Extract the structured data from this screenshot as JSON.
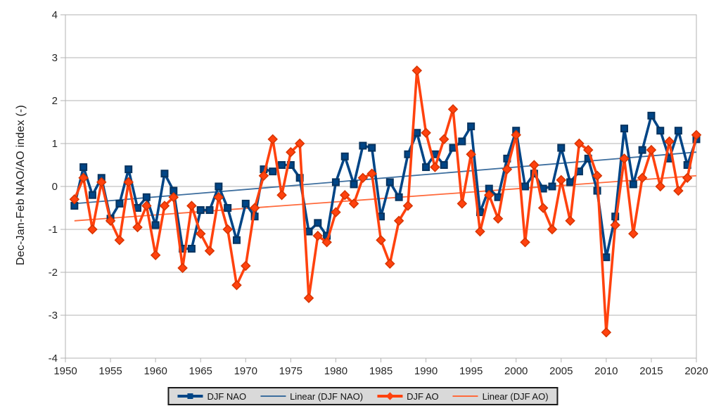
{
  "chart": {
    "y_axis_title": "Dec-Jan-Feb NAO/AO index (-)",
    "colors": {
      "nao": "#004586",
      "nao_marker_stroke": "#06335f",
      "ao": "#ff420e",
      "ao_marker_stroke": "#d63400",
      "nao_trend": "#3d6e9e",
      "ao_trend": "#ff6a3c",
      "gridline": "#b3b3b3",
      "axis_text": "#262626",
      "legend_bg": "#d9d9d9",
      "legend_border": "#1a1a1a"
    }
  },
  "axis": {
    "y_ticks": [
      4,
      3,
      2,
      1,
      0,
      -1,
      -2,
      -3,
      -4
    ],
    "x_ticks": [
      1950,
      1955,
      1960,
      1965,
      1970,
      1975,
      1980,
      1985,
      1990,
      1995,
      2000,
      2005,
      2010,
      2015,
      2020
    ]
  },
  "legend": {
    "items": [
      {
        "label": "DJF NAO"
      },
      {
        "label": "Linear (DJF NAO)"
      },
      {
        "label": "DJF AO"
      },
      {
        "label": "Linear (DJF AO)"
      }
    ]
  },
  "chart_data": {
    "type": "line",
    "title": "",
    "xlabel": "",
    "ylabel": "Dec-Jan-Feb NAO/AO index (-)",
    "xlim": [
      1950,
      2020
    ],
    "ylim": [
      -4,
      4
    ],
    "grid": "horizontal-only",
    "legend_position": "bottom-center",
    "x": [
      1951,
      1952,
      1953,
      1954,
      1955,
      1956,
      1957,
      1958,
      1959,
      1960,
      1961,
      1962,
      1963,
      1964,
      1965,
      1966,
      1967,
      1968,
      1969,
      1970,
      1971,
      1972,
      1973,
      1974,
      1975,
      1976,
      1977,
      1978,
      1979,
      1980,
      1981,
      1982,
      1983,
      1984,
      1985,
      1986,
      1987,
      1988,
      1989,
      1990,
      1991,
      1992,
      1993,
      1994,
      1995,
      1996,
      1997,
      1998,
      1999,
      2000,
      2001,
      2002,
      2003,
      2004,
      2005,
      2006,
      2007,
      2008,
      2009,
      2010,
      2011,
      2012,
      2013,
      2014,
      2015,
      2016,
      2017,
      2018,
      2019,
      2020
    ],
    "series": [
      {
        "name": "DJF NAO",
        "marker": "square",
        "values": [
          -0.45,
          0.45,
          -0.2,
          0.2,
          -0.75,
          -0.4,
          0.4,
          -0.5,
          -0.25,
          -0.9,
          0.3,
          -0.1,
          -1.45,
          -1.45,
          -0.55,
          -0.55,
          0.0,
          -0.5,
          -1.25,
          -0.4,
          -0.7,
          0.4,
          0.35,
          0.5,
          0.5,
          0.2,
          -1.05,
          -0.85,
          -1.15,
          0.1,
          0.7,
          0.05,
          0.95,
          0.9,
          -0.7,
          0.1,
          -0.25,
          0.75,
          1.25,
          0.45,
          0.75,
          0.5,
          0.9,
          1.05,
          1.4,
          -0.6,
          -0.05,
          -0.25,
          0.65,
          1.3,
          0.0,
          0.3,
          -0.05,
          0.0,
          0.9,
          0.1,
          0.35,
          0.65,
          -0.1,
          -1.65,
          -0.7,
          1.35,
          0.05,
          0.85,
          1.65,
          1.3,
          0.65,
          1.3,
          0.5,
          1.1
        ]
      },
      {
        "name": "DJF AO",
        "marker": "diamond",
        "values": [
          -0.3,
          0.2,
          -1.0,
          0.1,
          -0.8,
          -1.25,
          0.1,
          -0.95,
          -0.45,
          -1.6,
          -0.45,
          -0.25,
          -1.9,
          -0.45,
          -1.1,
          -1.5,
          -0.25,
          -1.0,
          -2.3,
          -1.85,
          -0.5,
          0.25,
          1.1,
          -0.2,
          0.8,
          1.0,
          -2.6,
          -1.15,
          -1.3,
          -0.6,
          -0.2,
          -0.4,
          0.2,
          0.3,
          -1.25,
          -1.8,
          -0.8,
          -0.45,
          2.7,
          1.25,
          0.45,
          1.1,
          1.8,
          -0.4,
          0.75,
          -1.05,
          -0.2,
          -0.75,
          0.4,
          1.2,
          -1.3,
          0.5,
          -0.5,
          -1.0,
          0.15,
          -0.8,
          1.0,
          0.85,
          0.25,
          -3.4,
          -0.9,
          0.65,
          -1.1,
          0.2,
          0.85,
          0.0,
          1.05,
          -0.1,
          0.2,
          1.2
        ]
      }
    ],
    "trend_lines": [
      {
        "name": "Linear (DJF NAO)",
        "points": [
          [
            1951,
            -0.4
          ],
          [
            2020,
            0.8
          ]
        ]
      },
      {
        "name": "Linear (DJF AO)",
        "points": [
          [
            1951,
            -0.8
          ],
          [
            2020,
            0.25
          ]
        ]
      }
    ]
  }
}
